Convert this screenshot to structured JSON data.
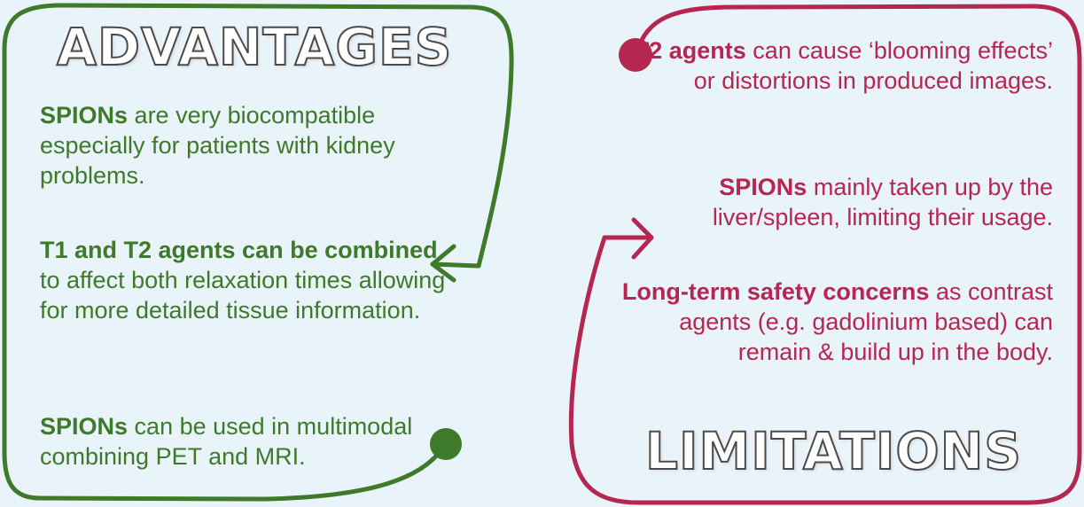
{
  "colors": {
    "advantages": "#3e7a2a",
    "limitations": "#b52750",
    "background": "#e9f3fa"
  },
  "advantages": {
    "title": "ADVANTAGES",
    "items": [
      {
        "bold": "SPIONs",
        "rest": " are very biocompatible especially for patients with kidney problems."
      },
      {
        "bold": "T1 and T2 agents can be combined",
        "rest": " to affect both relaxation times allowing for more detailed tissue information."
      },
      {
        "bold": "SPIONs",
        "rest": " can be used in multimodal combining PET and MRI."
      }
    ]
  },
  "limitations": {
    "title": "LIMITATIONS",
    "items": [
      {
        "bold": "T2 agents",
        "rest": " can cause ‘blooming effects’ or distortions in produced images."
      },
      {
        "bold": "SPIONs",
        "rest": " mainly taken up by the liver/spleen, limiting their usage."
      },
      {
        "bold": "Long-term safety concerns",
        "rest": " as contrast agents (e.g. gadolinium based) can remain & build up in the body."
      }
    ]
  }
}
